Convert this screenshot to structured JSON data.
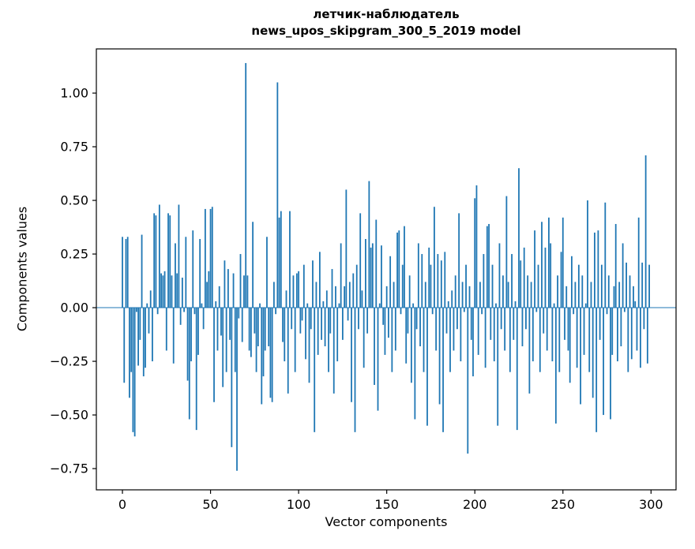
{
  "chart_data": {
    "type": "bar",
    "title": "летчик-наблюдатель",
    "subtitle": "news_upos_skipgram_300_5_2019 model",
    "xlabel": "Vector components",
    "ylabel": "Components values",
    "bar_color": "#1f77b4",
    "axis_color": "#000000",
    "background_color": "#ffffff",
    "grid": false,
    "legend": "none",
    "xlim": [
      -14.8,
      314.2
    ],
    "ylim": [
      -0.849,
      1.206
    ],
    "xticks": [
      {
        "v": 0,
        "label": "0"
      },
      {
        "v": 50,
        "label": "50"
      },
      {
        "v": 100,
        "label": "100"
      },
      {
        "v": 150,
        "label": "150"
      },
      {
        "v": 200,
        "label": "200"
      },
      {
        "v": 250,
        "label": "250"
      },
      {
        "v": 300,
        "label": "300"
      }
    ],
    "yticks": [
      {
        "v": 1.0,
        "label": "1.00"
      },
      {
        "v": 0.75,
        "label": "0.75"
      },
      {
        "v": 0.5,
        "label": "0.50"
      },
      {
        "v": 0.25,
        "label": "0.25"
      },
      {
        "v": 0.0,
        "label": "0.00"
      },
      {
        "v": -0.25,
        "label": "−0.25"
      },
      {
        "v": -0.5,
        "label": "−0.50"
      },
      {
        "v": -0.75,
        "label": "−0.75"
      }
    ],
    "values": [
      0.33,
      -0.35,
      0.32,
      0.33,
      -0.42,
      -0.3,
      -0.58,
      -0.6,
      -0.02,
      -0.27,
      -0.15,
      0.34,
      -0.32,
      -0.28,
      0.02,
      -0.12,
      0.08,
      -0.25,
      0.44,
      0.43,
      -0.03,
      0.48,
      0.16,
      0.15,
      0.17,
      -0.2,
      0.44,
      0.43,
      0.15,
      -0.26,
      0.3,
      0.16,
      0.48,
      -0.08,
      0.14,
      -0.02,
      0.33,
      -0.34,
      -0.52,
      -0.25,
      0.36,
      -0.03,
      -0.57,
      -0.22,
      0.32,
      0.02,
      -0.1,
      0.46,
      0.12,
      0.17,
      0.46,
      0.47,
      -0.44,
      0.03,
      -0.2,
      0.1,
      -0.13,
      -0.37,
      0.22,
      -0.3,
      0.18,
      -0.15,
      -0.65,
      0.16,
      -0.3,
      -0.76,
      -0.05,
      0.25,
      -0.16,
      0.15,
      1.14,
      0.15,
      -0.2,
      -0.23,
      0.4,
      -0.12,
      -0.3,
      -0.18,
      0.02,
      -0.45,
      -0.32,
      -0.2,
      0.33,
      -0.18,
      -0.42,
      -0.44,
      0.12,
      -0.03,
      1.05,
      0.42,
      0.45,
      -0.16,
      -0.25,
      0.08,
      -0.4,
      0.45,
      -0.1,
      0.15,
      -0.3,
      0.16,
      0.17,
      -0.12,
      -0.06,
      0.2,
      -0.24,
      0.02,
      -0.35,
      -0.1,
      0.22,
      -0.58,
      0.12,
      -0.22,
      0.26,
      -0.15,
      0.03,
      -0.18,
      0.08,
      -0.3,
      -0.12,
      0.18,
      -0.4,
      0.1,
      -0.25,
      0.02,
      0.3,
      -0.15,
      0.1,
      0.55,
      -0.06,
      0.12,
      -0.44,
      0.16,
      -0.58,
      0.2,
      -0.1,
      0.44,
      0.08,
      -0.28,
      0.32,
      -0.12,
      0.59,
      0.28,
      0.3,
      -0.36,
      0.41,
      -0.48,
      0.02,
      0.29,
      -0.08,
      -0.22,
      0.1,
      -0.14,
      0.24,
      -0.3,
      0.12,
      -0.2,
      0.35,
      0.36,
      -0.03,
      0.2,
      0.38,
      -0.26,
      -0.12,
      0.15,
      -0.35,
      0.02,
      -0.52,
      -0.1,
      0.3,
      -0.18,
      0.25,
      -0.3,
      0.12,
      -0.55,
      0.28,
      0.2,
      -0.03,
      0.47,
      -0.2,
      0.25,
      -0.45,
      0.22,
      -0.58,
      0.26,
      -0.12,
      0.03,
      -0.3,
      0.08,
      -0.2,
      0.15,
      -0.1,
      0.44,
      -0.25,
      0.12,
      -0.02,
      0.2,
      -0.68,
      0.1,
      -0.15,
      -0.32,
      0.51,
      0.57,
      -0.22,
      0.12,
      -0.03,
      0.25,
      -0.28,
      0.38,
      0.39,
      -0.15,
      0.2,
      -0.25,
      0.02,
      -0.55,
      0.3,
      -0.1,
      0.15,
      -0.2,
      0.52,
      0.12,
      -0.3,
      0.25,
      -0.15,
      0.03,
      -0.57,
      0.65,
      0.22,
      -0.18,
      0.28,
      -0.1,
      0.15,
      -0.4,
      0.12,
      -0.25,
      0.36,
      -0.02,
      0.2,
      -0.3,
      0.4,
      -0.12,
      0.28,
      -0.2,
      0.42,
      0.3,
      -0.25,
      0.02,
      -0.54,
      0.15,
      -0.3,
      0.26,
      0.42,
      -0.15,
      0.1,
      -0.2,
      -0.35,
      0.24,
      -0.03,
      0.12,
      -0.28,
      0.2,
      -0.45,
      0.15,
      -0.22,
      0.02,
      0.5,
      -0.3,
      0.12,
      -0.42,
      0.35,
      -0.58,
      0.36,
      -0.15,
      0.2,
      -0.5,
      0.49,
      -0.03,
      0.15,
      -0.52,
      -0.22,
      0.1,
      0.39,
      -0.25,
      0.12,
      -0.18,
      0.3,
      -0.02,
      0.21,
      -0.3,
      0.15,
      -0.24,
      0.1,
      0.03,
      -0.2,
      0.42,
      -0.28,
      0.21,
      -0.1,
      0.71,
      -0.26,
      0.2
    ]
  }
}
